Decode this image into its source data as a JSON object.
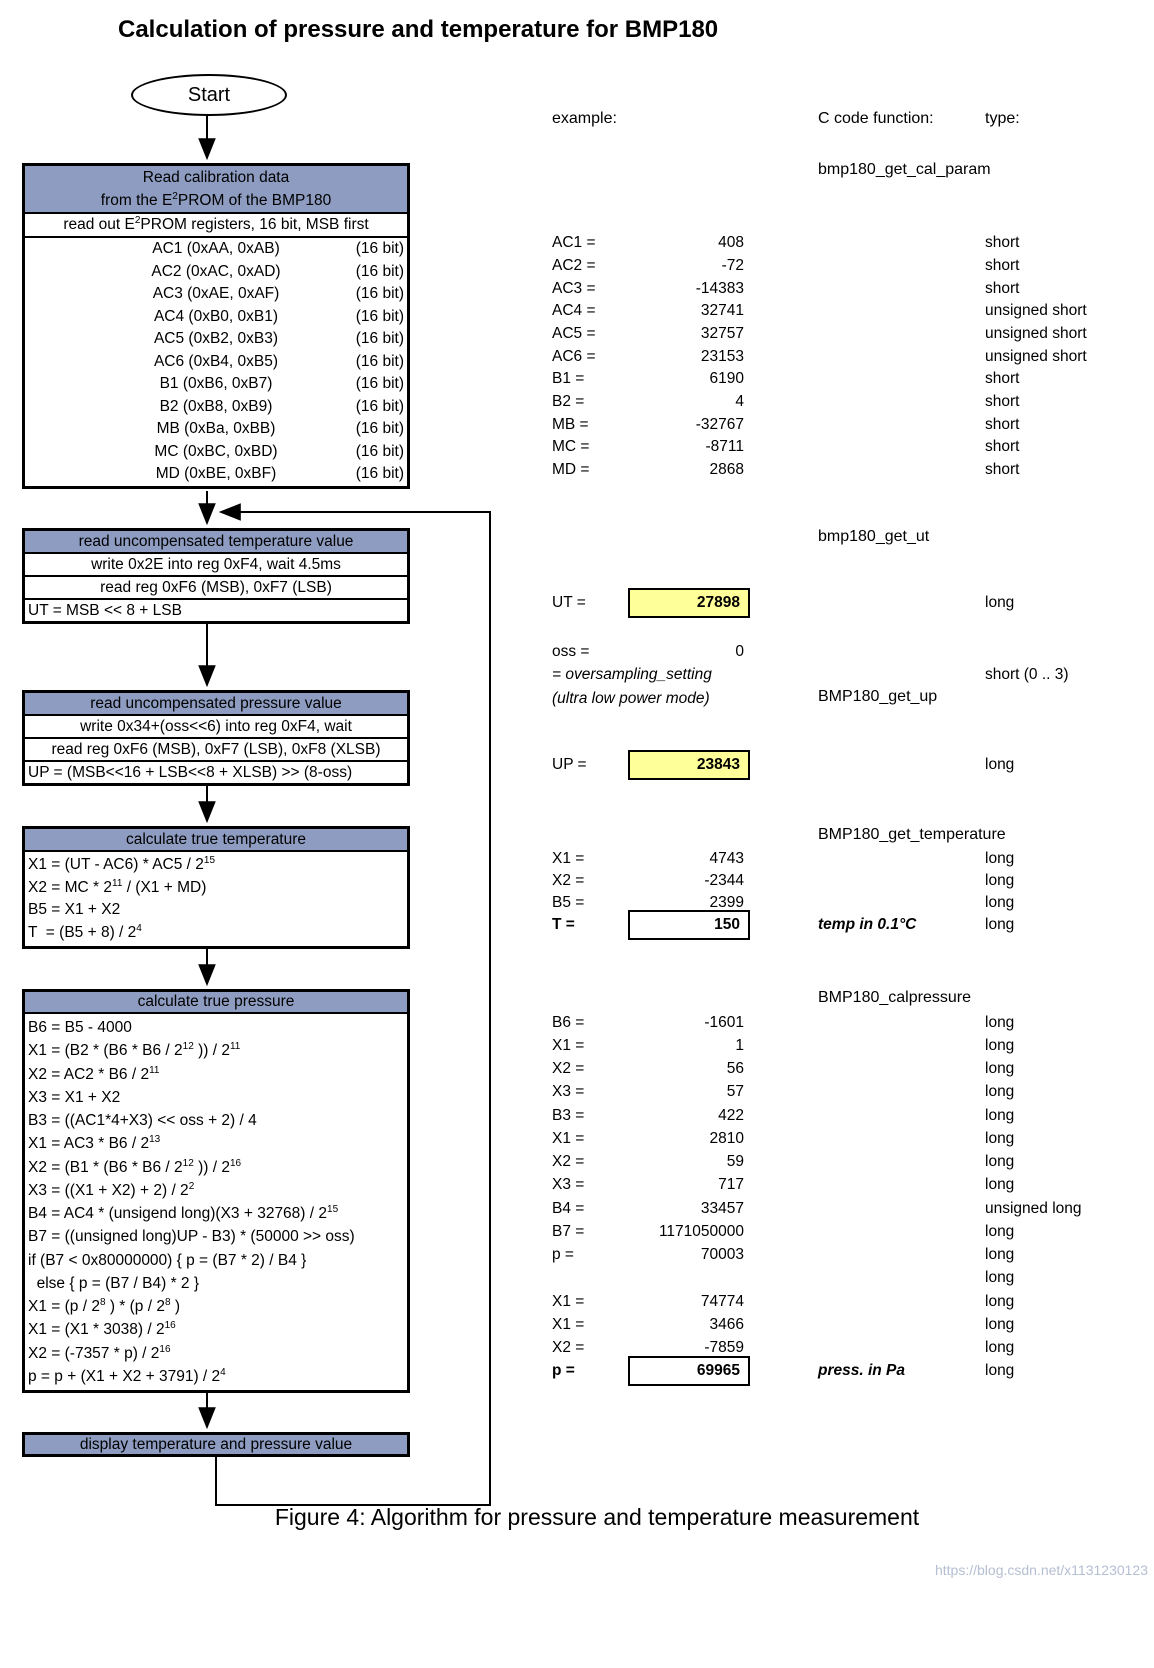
{
  "title": "Calculation of pressure and temperature for BMP180",
  "caption": "Figure 4: Algorithm for pressure and temperature measurement",
  "watermark": "https://blog.csdn.net/x1131230123",
  "columns": {
    "example": "example:",
    "c_code": "C code function:",
    "type": "type:"
  },
  "functions": {
    "cal_param": "bmp180_get_cal_param",
    "get_ut": "bmp180_get_ut",
    "get_up": "BMP180_get_up",
    "get_temperature": "BMP180_get_temperature",
    "calpressure": "BMP180_calpressure"
  },
  "flowchart": {
    "start": "Start",
    "calibration": {
      "header1": "Read calibration data",
      "header2": "from the E^2PROM of the BMP180",
      "subheader": "read out E^2PROM registers, 16 bit, MSB first",
      "bit_label": "(16 bit)",
      "registers": [
        "AC1 (0xAA, 0xAB)",
        "AC2 (0xAC, 0xAD)",
        "AC3 (0xAE, 0xAF)",
        "AC4 (0xB0, 0xB1)",
        "AC5 (0xB2, 0xB3)",
        "AC6 (0xB4, 0xB5)",
        "B1 (0xB6, 0xB7)",
        "B2 (0xB8, 0xB9)",
        "MB (0xBa, 0xBB)",
        "MC (0xBC, 0xBD)",
        "MD (0xBE, 0xBF)"
      ]
    },
    "read_ut": {
      "header": "read uncompensated temperature value",
      "row1": "write 0x2E into reg 0xF4, wait 4.5ms",
      "row2": "read reg 0xF6 (MSB), 0xF7 (LSB)",
      "formula": "UT = MSB << 8 + LSB"
    },
    "read_up": {
      "header": "read uncompensated pressure value",
      "row1": "write 0x34+(oss<<6) into reg 0xF4, wait",
      "row2": "read reg 0xF6 (MSB), 0xF7 (LSB), 0xF8 (XLSB)",
      "formula": "UP = (MSB<<16 + LSB<<8 + XLSB) >> (8-oss)"
    },
    "calc_temp": {
      "header": "calculate true temperature",
      "formulas": [
        "X1 = (UT - AC6) * AC5 / 2^15",
        "X2 = MC * 2^11 / (X1 + MD)",
        "B5 = X1 + X2",
        "T  = (B5 + 8) / 2^4"
      ]
    },
    "calc_press": {
      "header": "calculate true pressure",
      "formulas": [
        "B6 = B5 - 4000",
        "X1 = (B2 * (B6 * B6 / 2^12 )) / 2^11",
        "X2 = AC2 * B6 / 2^11",
        "X3 = X1 + X2",
        "B3 = ((AC1*4+X3) << oss + 2) / 4",
        "X1 = AC3 * B6 / 2^13",
        "X2 = (B1 * (B6 * B6 / 2^12 )) / 2^16",
        "X3 = ((X1 + X2) + 2) / 2^2",
        "B4 = AC4 * (unsigend long)(X3 + 32768) / 2^15",
        "B7 = ((unsigned long)UP - B3) * (50000 >> oss)",
        "if (B7 < 0x80000000) { p = (B7 * 2) / B4 }",
        "  else { p = (B7 / B4) * 2 }",
        "X1 = (p / 2^8 ) * (p / 2^8 )",
        "X1 = (X1 * 3038) / 2^16",
        "X2 = (-7357 * p) / 2^16",
        "p = p + (X1 + X2 + 3791) / 2^4"
      ]
    },
    "display": {
      "header": "display temperature and pressure value"
    }
  },
  "cal_examples": [
    {
      "label": "AC1 =",
      "value": "408",
      "type": "short"
    },
    {
      "label": "AC2 =",
      "value": "-72",
      "type": "short"
    },
    {
      "label": "AC3 =",
      "value": "-14383",
      "type": "short"
    },
    {
      "label": "AC4 =",
      "value": "32741",
      "type": "unsigned short"
    },
    {
      "label": "AC5 =",
      "value": "32757",
      "type": "unsigned short"
    },
    {
      "label": "AC6 =",
      "value": "23153",
      "type": "unsigned short"
    },
    {
      "label": "B1 =",
      "value": "6190",
      "type": "short"
    },
    {
      "label": "B2 =",
      "value": "4",
      "type": "short"
    },
    {
      "label": "MB =",
      "value": "-32767",
      "type": "short"
    },
    {
      "label": "MC =",
      "value": "-8711",
      "type": "short"
    },
    {
      "label": "MD =",
      "value": "2868",
      "type": "short"
    }
  ],
  "ut_example": {
    "label": "UT =",
    "value": "27898",
    "type": "long"
  },
  "oss": {
    "label": "oss =",
    "value": "0",
    "line2": "= oversampling_setting",
    "line3": "(ultra low power mode)",
    "type": "short (0 .. 3)"
  },
  "up_example": {
    "label": "UP =",
    "value": "23843",
    "type": "long"
  },
  "temp_examples": [
    {
      "label": "X1 =",
      "value": "4743",
      "type": "long"
    },
    {
      "label": "X2 =",
      "value": "-2344",
      "type": "long"
    },
    {
      "label": "B5 =",
      "value": "2399",
      "type": "long"
    },
    {
      "label": "T =",
      "value": "150",
      "type": "long",
      "note": "temp in 0.1°C"
    }
  ],
  "press_examples": [
    {
      "label": "B6 =",
      "value": "-1601",
      "type": "long"
    },
    {
      "label": "X1 =",
      "value": "1",
      "type": "long"
    },
    {
      "label": "X2 =",
      "value": "56",
      "type": "long"
    },
    {
      "label": "X3 =",
      "value": "57",
      "type": "long"
    },
    {
      "label": "B3 =",
      "value": "422",
      "type": "long"
    },
    {
      "label": "X1 =",
      "value": "2810",
      "type": "long"
    },
    {
      "label": "X2 =",
      "value": "59",
      "type": "long"
    },
    {
      "label": "X3 =",
      "value": "717",
      "type": "long"
    },
    {
      "label": "B4 =",
      "value": "33457",
      "type": "unsigned long"
    },
    {
      "label": "B7 =",
      "value": "1171050000",
      "type": "long"
    },
    {
      "label": "p =",
      "value": "70003",
      "type": "long"
    },
    {
      "label": "",
      "value": "",
      "type": "long"
    },
    {
      "label": "X1 =",
      "value": "74774",
      "type": "long"
    },
    {
      "label": "X1 =",
      "value": "3466",
      "type": "long"
    },
    {
      "label": "X2 =",
      "value": "-7859",
      "type": "long"
    },
    {
      "label": "p =",
      "value": "69965",
      "type": "long",
      "note": "press. in Pa"
    }
  ]
}
